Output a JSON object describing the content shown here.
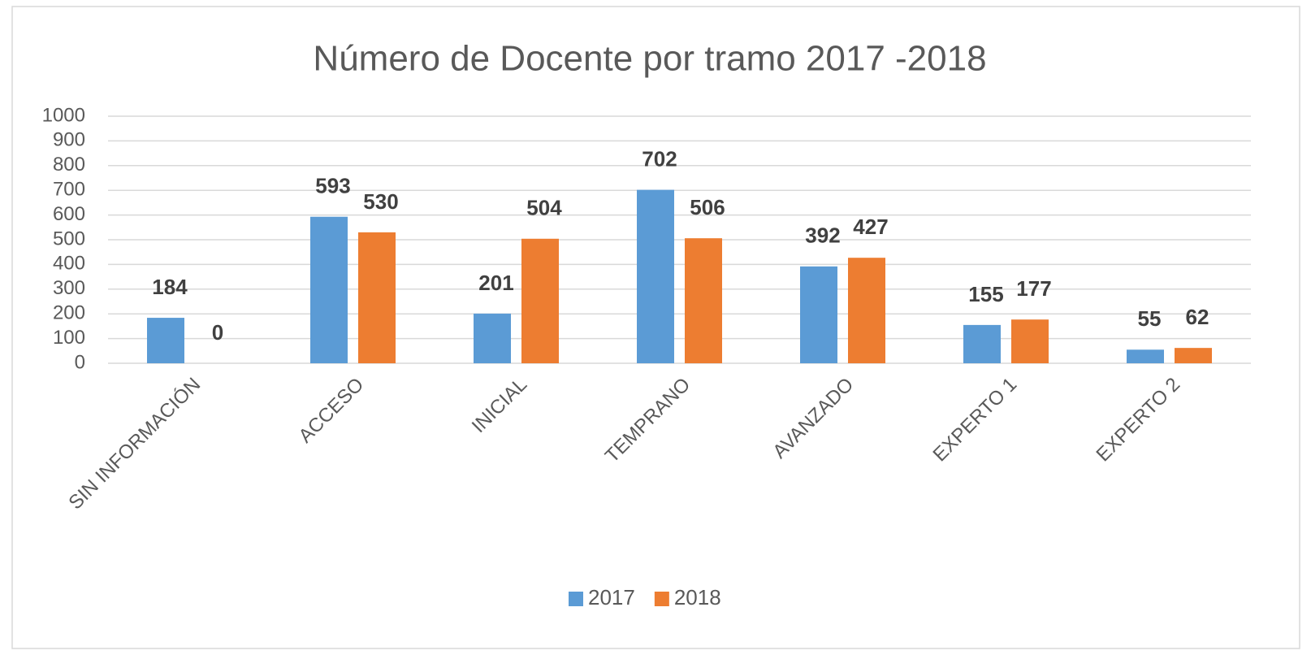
{
  "chart_data": {
    "type": "bar",
    "title": "Número de Docente por tramo 2017 -2018",
    "categories": [
      "SIN INFORMACIÓN",
      "ACCESO",
      "INICIAL",
      "TEMPRANO",
      "AVANZADO",
      "EXPERTO 1",
      "EXPERTO 2"
    ],
    "series": [
      {
        "name": "2017",
        "color": "#5b9bd5",
        "values": [
          184,
          593,
          201,
          702,
          392,
          155,
          55
        ]
      },
      {
        "name": "2018",
        "color": "#ed7d31",
        "values": [
          0,
          530,
          504,
          506,
          427,
          177,
          62
        ]
      }
    ],
    "ylim": [
      0,
      1000
    ],
    "yticks": [
      0,
      100,
      200,
      300,
      400,
      500,
      600,
      700,
      800,
      900,
      1000
    ],
    "grid": true,
    "legend": "bottom"
  }
}
